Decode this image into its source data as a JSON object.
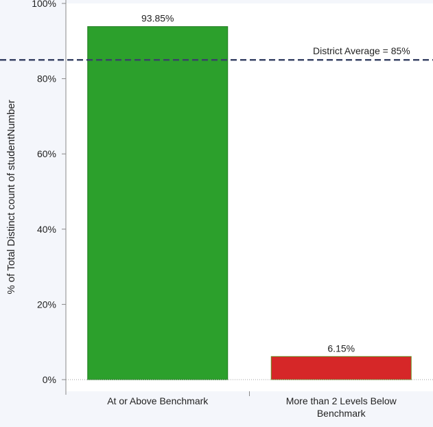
{
  "colors": {
    "background": "#f4f6fb",
    "plot_area": "#ffffff",
    "axis": "#888888",
    "zero_line": "#a0a0a0",
    "ref_line": "#3a4466"
  },
  "chart_data": {
    "type": "bar",
    "title": "",
    "xlabel": "",
    "ylabel": "% of Total Distinct count of studentNumber",
    "categories": [
      "At or Above Benchmark",
      "More than 2 Levels Below Benchmark"
    ],
    "category_label_lines": [
      [
        "At or Above Benchmark"
      ],
      [
        "More than 2 Levels Below",
        "Benchmark"
      ]
    ],
    "values": [
      93.85,
      6.15
    ],
    "data_labels": [
      "93.85%",
      "6.15%"
    ],
    "bar_colors": [
      "#2ca02c",
      "#d62728"
    ],
    "bar_border_colors": [
      "#1e7a1e",
      "#6b8e23"
    ],
    "ylim": [
      0,
      100
    ],
    "yticks": [
      0,
      20,
      40,
      60,
      80,
      100
    ],
    "ytick_labels": [
      "0%",
      "20%",
      "40%",
      "60%",
      "80%",
      "100%"
    ],
    "reference_line": {
      "value": 85,
      "label": "District Average = 85%"
    },
    "grid": false
  }
}
